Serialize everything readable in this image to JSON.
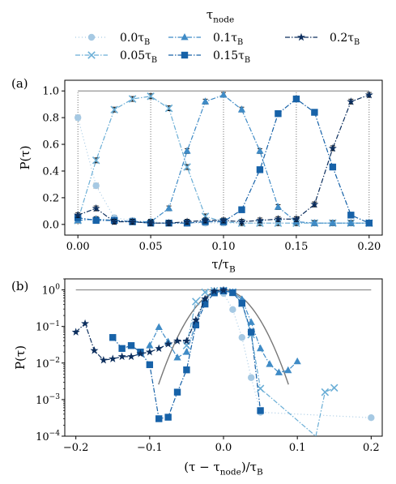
{
  "legend": {
    "title": "τ_node",
    "entries": [
      {
        "label": "0.0τ_B",
        "marker": "circle",
        "color": "#a6c9e3",
        "dash": "1,3"
      },
      {
        "label": "0.05τ_B",
        "marker": "x",
        "color": "#6aaed6",
        "dash": "6,2,1.5,2"
      },
      {
        "label": "0.1τ_B",
        "marker": "triangle",
        "color": "#3f8bc6",
        "dash": "6,2,1.5,2"
      },
      {
        "label": "0.15τ_B",
        "marker": "square",
        "color": "#1762a8",
        "dash": "6,2,1.5,2"
      },
      {
        "label": "0.2τ_B",
        "marker": "star",
        "color": "#0d2f5e",
        "dash": "6,2,1.5,2"
      }
    ]
  },
  "chart_data": [
    {
      "panel_label": "(a)",
      "type": "line",
      "xlabel": "τ/τ_B",
      "ylabel": "P(τ)",
      "xlim": [
        -0.009,
        0.209
      ],
      "ylim": [
        -0.08,
        1.08
      ],
      "xticks": [
        "0.00",
        "0.05",
        "0.10",
        "0.15",
        "0.20"
      ],
      "yticks": [
        "0.0",
        "0.2",
        "0.4",
        "0.6",
        "0.8",
        "1.0"
      ],
      "x": [
        0.0,
        0.0125,
        0.025,
        0.0375,
        0.05,
        0.0625,
        0.075,
        0.0875,
        0.1,
        0.1125,
        0.125,
        0.1375,
        0.15,
        0.1625,
        0.175,
        0.1875,
        0.2
      ],
      "reference_line": {
        "y": 1.0,
        "x_range": [
          0.0,
          0.2
        ]
      },
      "vertical_lines": [
        0.0,
        0.05,
        0.1,
        0.15,
        0.2
      ],
      "series": [
        {
          "name": "0.0τ_B",
          "values": [
            0.8,
            0.29,
            0.05,
            0.03,
            0.02,
            0.01,
            0.01,
            0.01,
            0.01,
            0.01,
            0.01,
            0.01,
            0.01,
            0.01,
            0.01,
            0.01,
            0.01
          ]
        },
        {
          "name": "0.05τ_B",
          "values": [
            0.03,
            0.48,
            0.86,
            0.94,
            0.96,
            0.87,
            0.43,
            0.06,
            0.02,
            0.01,
            0.01,
            0.01,
            0.01,
            0.01,
            0.01,
            0.01,
            0.01
          ]
        },
        {
          "name": "0.1τ_B",
          "values": [
            0.03,
            0.04,
            0.03,
            0.02,
            0.02,
            0.12,
            0.55,
            0.92,
            0.97,
            0.86,
            0.55,
            0.13,
            0.02,
            0.01,
            0.01,
            0.01,
            0.01
          ]
        },
        {
          "name": "0.15τ_B",
          "values": [
            0.05,
            0.03,
            0.03,
            0.02,
            0.01,
            0.01,
            0.01,
            0.02,
            0.02,
            0.11,
            0.41,
            0.83,
            0.94,
            0.84,
            0.43,
            0.07,
            0.01
          ]
        },
        {
          "name": "0.2τ_B",
          "values": [
            0.07,
            0.12,
            0.02,
            0.02,
            0.01,
            0.01,
            0.02,
            0.03,
            0.03,
            0.02,
            0.03,
            0.04,
            0.04,
            0.15,
            0.57,
            0.92,
            0.97
          ]
        }
      ]
    },
    {
      "panel_label": "(b)",
      "type": "line",
      "yscale": "log",
      "xlabel": "(τ − τ_node)/τ_B",
      "ylabel": "P(τ)",
      "xlim": [
        -0.215,
        0.215
      ],
      "ylim": [
        0.0001,
        2.0
      ],
      "xticks": [
        "−0.2",
        "−0.1",
        "0.0",
        "0.1",
        "0.2"
      ],
      "yticks": [
        "10^0",
        "10^−1",
        "10^−2",
        "10^−3",
        "10^−4"
      ],
      "reference_line": {
        "y": 1.0,
        "x_range": [
          -0.2,
          0.2
        ]
      },
      "gaussian_curve": {
        "peak": 1.0,
        "center": 0.0,
        "sigma": 0.0255,
        "x_range": [
          -0.088,
          0.088
        ]
      },
      "series": [
        {
          "name": "0.0τ_B",
          "points": [
            [
              0.0,
              0.8
            ],
            [
              0.0125,
              0.29
            ],
            [
              0.025,
              0.05
            ],
            [
              0.0375,
              0.004
            ],
            [
              0.05,
              0.00045
            ],
            [
              0.2,
              0.00032
            ]
          ]
        },
        {
          "name": "0.05τ_B",
          "points": [
            [
              -0.05,
              0.03
            ],
            [
              -0.0375,
              0.48
            ],
            [
              -0.025,
              0.86
            ],
            [
              -0.0125,
              0.94
            ],
            [
              0.0,
              0.96
            ],
            [
              0.0125,
              0.87
            ],
            [
              0.025,
              0.43
            ],
            [
              0.0375,
              0.06
            ],
            [
              0.05,
              0.002
            ],
            [
              0.125,
              0.0001
            ],
            [
              0.1375,
              0.0016
            ],
            [
              0.15,
              0.0021
            ]
          ]
        },
        {
          "name": "0.1τ_B",
          "points": [
            [
              -0.1,
              0.03
            ],
            [
              -0.0875,
              0.095
            ],
            [
              -0.075,
              0.038
            ],
            [
              -0.0625,
              0.014
            ],
            [
              -0.05,
              0.02
            ],
            [
              -0.0375,
              0.12
            ],
            [
              -0.025,
              0.55
            ],
            [
              -0.0125,
              0.92
            ],
            [
              0.0,
              0.97
            ],
            [
              0.0125,
              0.86
            ],
            [
              0.025,
              0.55
            ],
            [
              0.0375,
              0.13
            ],
            [
              0.05,
              0.025
            ],
            [
              0.0625,
              0.0093
            ],
            [
              0.075,
              0.0055
            ],
            [
              0.0875,
              0.0063
            ],
            [
              0.1,
              0.011
            ]
          ]
        },
        {
          "name": "0.15τ_B",
          "points": [
            [
              -0.15,
              0.05
            ],
            [
              -0.1375,
              0.025
            ],
            [
              -0.125,
              0.03
            ],
            [
              -0.1125,
              0.02
            ],
            [
              -0.1,
              0.009
            ],
            [
              -0.0875,
              0.0003
            ],
            [
              -0.075,
              0.00033
            ],
            [
              -0.0625,
              0.0016
            ],
            [
              -0.05,
              0.0065
            ],
            [
              -0.0375,
              0.11
            ],
            [
              -0.025,
              0.41
            ],
            [
              -0.0125,
              0.83
            ],
            [
              0.0,
              0.94
            ],
            [
              0.0125,
              0.84
            ],
            [
              0.025,
              0.43
            ],
            [
              0.0375,
              0.07
            ],
            [
              0.05,
              0.0005
            ]
          ]
        },
        {
          "name": "0.2τ_B",
          "points": [
            [
              -0.2,
              0.07
            ],
            [
              -0.1875,
              0.12
            ],
            [
              -0.175,
              0.022
            ],
            [
              -0.1625,
              0.012
            ],
            [
              -0.15,
              0.013
            ],
            [
              -0.1375,
              0.015
            ],
            [
              -0.125,
              0.015
            ],
            [
              -0.1125,
              0.018
            ],
            [
              -0.1,
              0.02
            ],
            [
              -0.0875,
              0.025
            ],
            [
              -0.075,
              0.033
            ],
            [
              -0.0625,
              0.04
            ],
            [
              -0.05,
              0.04
            ],
            [
              -0.0375,
              0.15
            ],
            [
              -0.025,
              0.57
            ],
            [
              -0.0125,
              0.92
            ],
            [
              0.0,
              0.97
            ]
          ]
        }
      ]
    }
  ]
}
